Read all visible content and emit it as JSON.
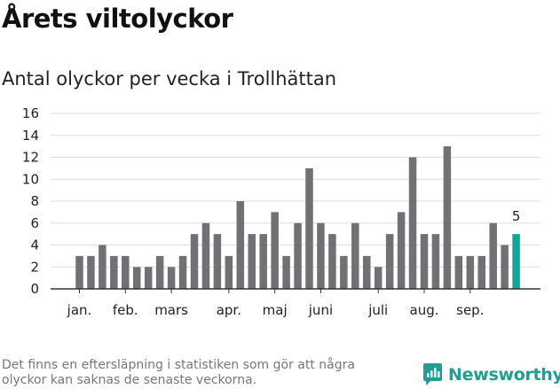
{
  "title": "Årets viltolyckor",
  "subtitle": "Antal olyckor per vecka i Trollhättan",
  "footnote": "Det finns en eftersläpning i statistiken som gör att några olyckor kan saknas de senaste veckorna.",
  "brand": {
    "name": "Newsworthy",
    "logo_icon": "newsworthy-logo-icon",
    "color": "#1f9e94"
  },
  "colors": {
    "bar": "#717075",
    "highlight": "#12a69b",
    "grid": "#dddddd",
    "axis": "#333333"
  },
  "chart_data": {
    "type": "bar",
    "title": "Antal olyckor per vecka i Trollhättan",
    "xlabel": "",
    "ylabel": "",
    "x": [
      1,
      2,
      3,
      4,
      5,
      6,
      7,
      8,
      9,
      10,
      11,
      12,
      13,
      14,
      15,
      16,
      17,
      18,
      19,
      20,
      21,
      22,
      23,
      24,
      25,
      26,
      27,
      28,
      29,
      30,
      31,
      32,
      33,
      34,
      35,
      36,
      37,
      38,
      39
    ],
    "values": [
      3,
      3,
      4,
      3,
      3,
      2,
      2,
      3,
      2,
      3,
      5,
      6,
      5,
      3,
      8,
      5,
      5,
      7,
      3,
      6,
      11,
      6,
      5,
      3,
      6,
      3,
      2,
      5,
      7,
      12,
      5,
      5,
      13,
      3,
      3,
      3,
      6,
      4,
      5
    ],
    "highlight_index": 38,
    "highlight_label": "5",
    "ylim": [
      0,
      16
    ],
    "yticks": [
      0,
      2,
      4,
      6,
      8,
      10,
      12,
      14,
      16
    ],
    "grid": true,
    "month_ticks": [
      {
        "label": "jan.",
        "week": 1
      },
      {
        "label": "feb.",
        "week": 5
      },
      {
        "label": "mars",
        "week": 9
      },
      {
        "label": "apr.",
        "week": 14
      },
      {
        "label": "maj",
        "week": 18
      },
      {
        "label": "juni",
        "week": 22
      },
      {
        "label": "juli",
        "week": 27
      },
      {
        "label": "aug.",
        "week": 31
      },
      {
        "label": "sep.",
        "week": 35
      }
    ]
  }
}
